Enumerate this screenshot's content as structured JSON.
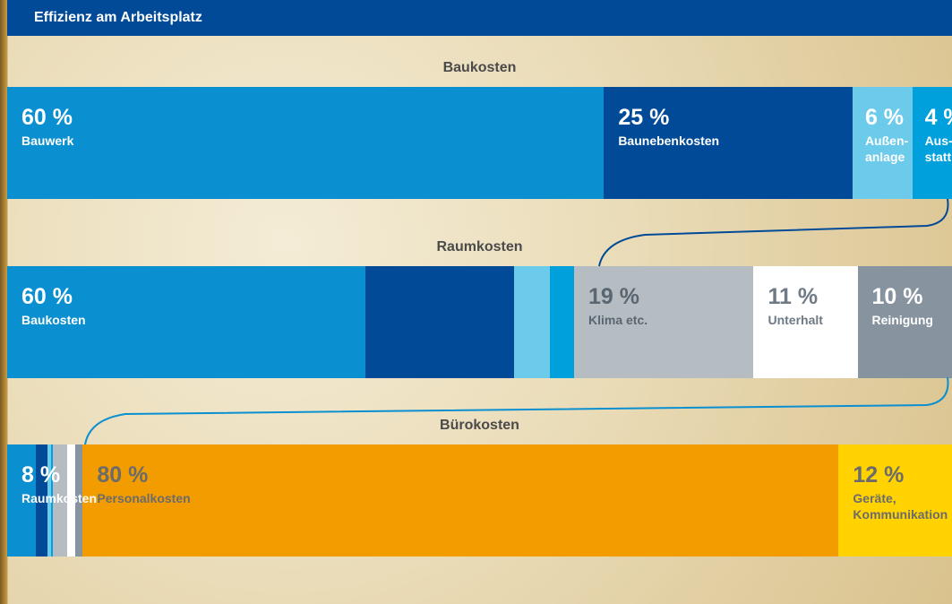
{
  "header": {
    "title": "Effizienz am Arbeitsplatz"
  },
  "chart_data": [
    {
      "type": "stacked-bar",
      "title": "Baukosten",
      "series": [
        {
          "name": "Bauwerk",
          "color": "#0a8fd0",
          "label_color": "#ffffff",
          "values": [
            60
          ],
          "value_labels": [
            "60 %"
          ]
        },
        {
          "name": "Baunebenkosten",
          "color": "#004a97",
          "label_color": "#ffffff",
          "values": [
            25
          ],
          "value_labels": [
            "25 %"
          ]
        },
        {
          "name": "Außen­anlage",
          "color": "#6ccbea",
          "label_color": "#ffffff",
          "values": [
            6
          ],
          "value_labels": [
            "6 %"
          ]
        },
        {
          "name": "Aus­statt­ung",
          "color": "#00a0dc",
          "label_color": "#ffffff",
          "values": [
            4
          ],
          "value_labels": [
            "4 %"
          ]
        }
      ]
    },
    {
      "type": "stacked-bar",
      "title": "Raumkosten",
      "series": [
        {
          "name": "Baukosten",
          "color": "#0a8fd0",
          "label_color": "#ffffff",
          "values": [
            60
          ],
          "value_labels": [
            "60 %"
          ]
        },
        {
          "name": "Klima etc.",
          "color": "#b5bcc2",
          "label_color": "#5a6670",
          "values": [
            19
          ],
          "value_labels": [
            "19 %"
          ]
        },
        {
          "name": "Unterhalt",
          "color": "#ffffff",
          "label_color": "#6e7a84",
          "values": [
            11
          ],
          "value_labels": [
            "11 %"
          ]
        },
        {
          "name": "Reinigung",
          "color": "#8794a0",
          "label_color": "#ffffff",
          "values": [
            10
          ],
          "value_labels": [
            "10 %"
          ]
        }
      ]
    },
    {
      "type": "stacked-bar",
      "title": "Bürokosten",
      "series": [
        {
          "name": "Raumkosten",
          "color": "#0a8fd0",
          "label_color": "#ffffff",
          "values": [
            8
          ],
          "value_labels": [
            "8 %"
          ]
        },
        {
          "name": "Personalkosten",
          "color": "#f39c00",
          "label_color": "#6b6b6b",
          "values": [
            80
          ],
          "value_labels": [
            "80 %"
          ]
        },
        {
          "name": "Geräte, Kommuni­kation",
          "color": "#ffd200",
          "label_color": "#6b6b6b",
          "values": [
            12
          ],
          "value_labels": [
            "12 %"
          ]
        }
      ]
    }
  ]
}
